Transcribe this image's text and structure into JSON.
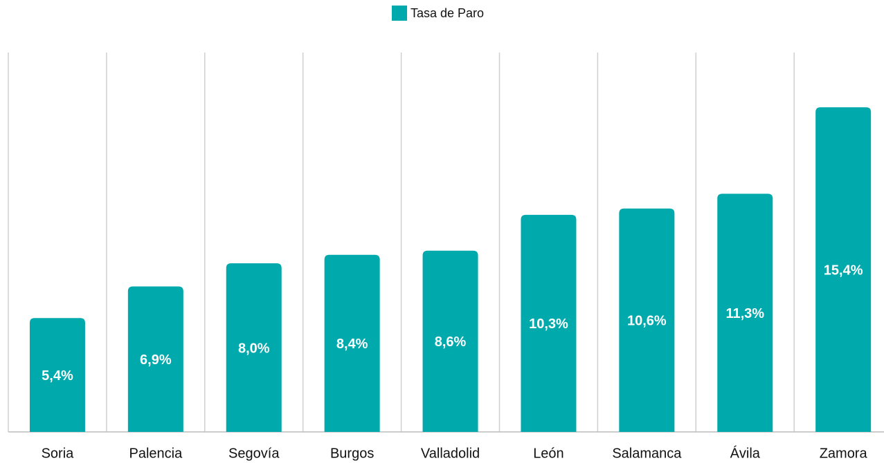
{
  "chart_data": {
    "type": "bar",
    "series": [
      {
        "name": "Tasa de Paro",
        "color": "#00a9ac",
        "values": [
          5.4,
          6.9,
          8.0,
          8.4,
          8.6,
          10.3,
          10.6,
          11.3,
          15.4
        ],
        "value_labels": [
          "5,4%",
          "6,9%",
          "8,0%",
          "8,4%",
          "8,6%",
          "10,3%",
          "10,6%",
          "11,3%",
          "15,4%"
        ]
      }
    ],
    "categories": [
      "Soria",
      "Palencia",
      "Segovía",
      "Burgos",
      "Valladolid",
      "León",
      "Salamanca",
      "Ávila",
      "Zamora"
    ],
    "ylim": [
      0,
      18
    ],
    "legend": "top"
  }
}
